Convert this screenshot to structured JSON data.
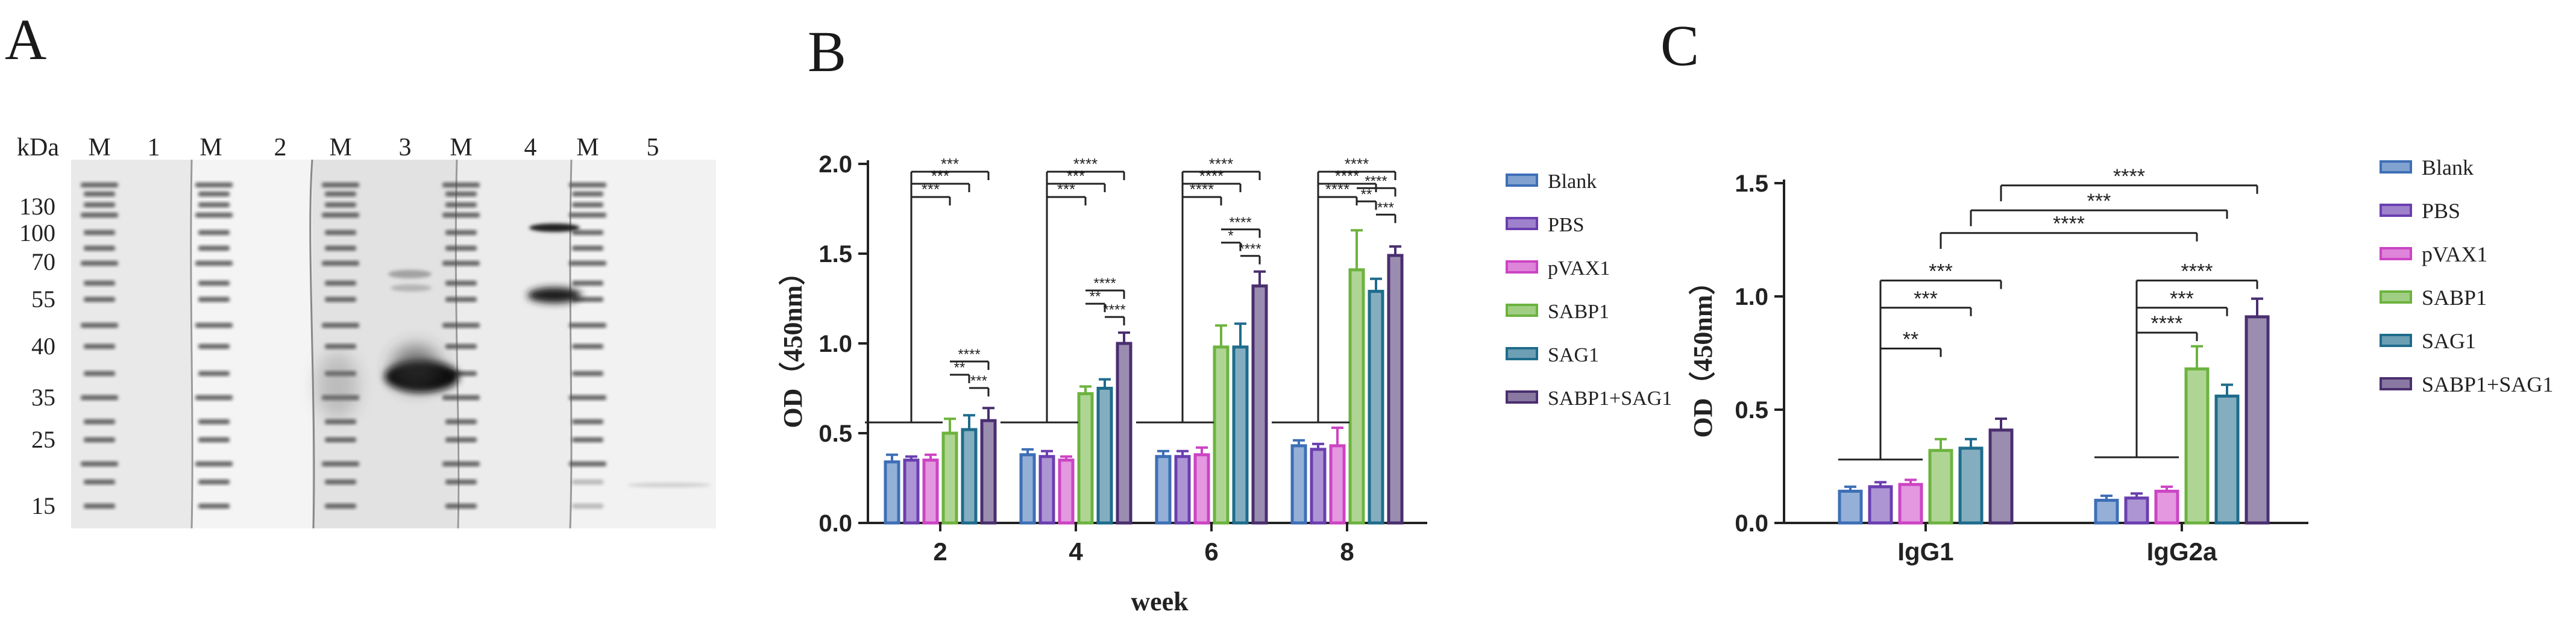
{
  "panels": {
    "A": "A",
    "B": "B",
    "C": "C"
  },
  "colors": {
    "Blank": "#3d6fb6",
    "PBS": "#6a3fb0",
    "pVAX1": "#cc44c4",
    "SABP1": "#6db33f",
    "SAG1": "#1f6c8c",
    "SABP1+SAG1": "#4a2f6f"
  },
  "blot": {
    "kda_label": "kDa",
    "lane_labels": [
      "M",
      "1",
      "M",
      "2",
      "M",
      "3",
      "M",
      "4",
      "M",
      "5"
    ],
    "marker_kda": [
      "130",
      "100",
      "70",
      "55",
      "40",
      "35",
      "25",
      "15"
    ]
  },
  "chart_data": [
    {
      "type": "bar",
      "panel": "B",
      "title": "",
      "xlabel": "week",
      "ylabel": "OD（450nm）",
      "ylim": [
        0,
        2.0
      ],
      "yticks": [
        "0.0",
        "0.5",
        "1.0",
        "1.5",
        "2.0"
      ],
      "categories": [
        "2",
        "4",
        "6",
        "8"
      ],
      "series": [
        {
          "name": "Blank",
          "values": [
            0.34,
            0.38,
            0.37,
            0.43
          ],
          "errors": [
            0.04,
            0.03,
            0.03,
            0.03
          ]
        },
        {
          "name": "PBS",
          "values": [
            0.35,
            0.37,
            0.37,
            0.41
          ],
          "errors": [
            0.02,
            0.03,
            0.03,
            0.03
          ]
        },
        {
          "name": "pVAX1",
          "values": [
            0.35,
            0.35,
            0.38,
            0.43
          ],
          "errors": [
            0.03,
            0.02,
            0.04,
            0.1
          ]
        },
        {
          "name": "SABP1",
          "values": [
            0.5,
            0.72,
            0.98,
            1.41
          ],
          "errors": [
            0.08,
            0.04,
            0.12,
            0.22
          ]
        },
        {
          "name": "SAG1",
          "values": [
            0.52,
            0.75,
            0.98,
            1.29
          ],
          "errors": [
            0.08,
            0.05,
            0.13,
            0.07
          ]
        },
        {
          "name": "SABP1+SAG1",
          "values": [
            0.57,
            1.0,
            1.32,
            1.49
          ],
          "errors": [
            0.07,
            0.06,
            0.08,
            0.05
          ]
        }
      ],
      "significance": [
        {
          "group": "2",
          "labels": [
            "***",
            "***",
            "***",
            "****",
            "**",
            "***"
          ]
        },
        {
          "group": "4",
          "labels": [
            "****",
            "***",
            "***",
            "****",
            "**",
            "****"
          ]
        },
        {
          "group": "6",
          "labels": [
            "****",
            "****",
            "****",
            "****",
            "*",
            "****"
          ]
        },
        {
          "group": "8",
          "labels": [
            "****",
            "****",
            "****",
            "****",
            "**",
            "***"
          ]
        }
      ],
      "legend": [
        "Blank",
        "PBS",
        "pVAX1",
        "SABP1",
        "SAG1",
        "SABP1+SAG1"
      ]
    },
    {
      "type": "bar",
      "panel": "C",
      "title": "",
      "xlabel": "",
      "ylabel": "OD（450nm）",
      "ylim": [
        0,
        1.5
      ],
      "yticks": [
        "0.0",
        "0.5",
        "1.0",
        "1.5"
      ],
      "categories": [
        "IgG1",
        "IgG2a"
      ],
      "series": [
        {
          "name": "Blank",
          "values": [
            0.14,
            0.1
          ],
          "errors": [
            0.02,
            0.02
          ]
        },
        {
          "name": "PBS",
          "values": [
            0.16,
            0.11
          ],
          "errors": [
            0.02,
            0.02
          ]
        },
        {
          "name": "pVAX1",
          "values": [
            0.17,
            0.14
          ],
          "errors": [
            0.02,
            0.02
          ]
        },
        {
          "name": "SABP1",
          "values": [
            0.32,
            0.68
          ],
          "errors": [
            0.05,
            0.1
          ]
        },
        {
          "name": "SAG1",
          "values": [
            0.33,
            0.56
          ],
          "errors": [
            0.04,
            0.05
          ]
        },
        {
          "name": "SABP1+SAG1",
          "values": [
            0.41,
            0.91
          ],
          "errors": [
            0.05,
            0.08
          ]
        }
      ],
      "significance": [
        {
          "group": "IgG1",
          "labels": [
            "***",
            "***",
            "**"
          ]
        },
        {
          "group": "IgG2a",
          "labels": [
            "****",
            "***",
            "****"
          ]
        },
        {
          "group": "between",
          "labels": [
            "****",
            "***",
            "****"
          ]
        }
      ],
      "legend": [
        "Blank",
        "PBS",
        "pVAX1",
        "SABP1",
        "SAG1",
        "SABP1+SAG1"
      ]
    }
  ]
}
